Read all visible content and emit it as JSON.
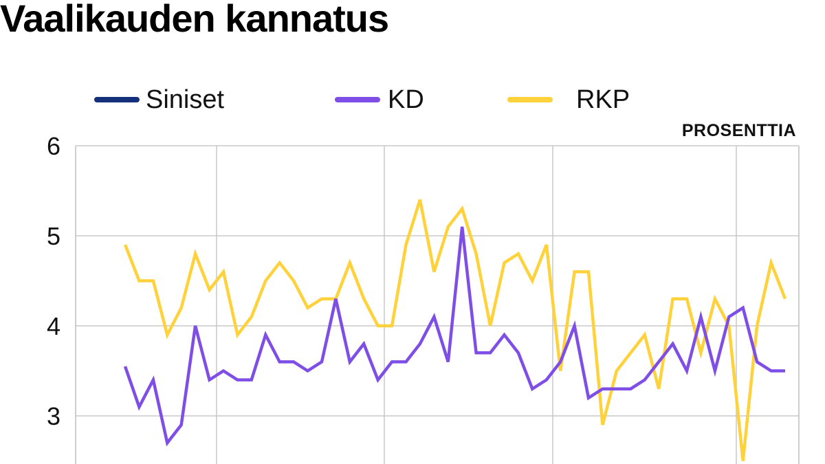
{
  "title": "Vaalikauden kannatus",
  "unit_label": "PROSENTTIA",
  "legend": [
    {
      "label": "Siniset",
      "color": "#14307a"
    },
    {
      "label": "KD",
      "color": "#7e4ee6"
    },
    {
      "label": "RKP",
      "color": "#ffd23c"
    }
  ],
  "chart_data": {
    "type": "line",
    "title": "Vaalikauden kannatus",
    "ylabel": "PROSENTTIA",
    "xlabel": "",
    "ylim": [
      2.5,
      6.0
    ],
    "y_ticks": [
      "6",
      "5",
      "4",
      "3"
    ],
    "grid": true,
    "legend_position": "top",
    "series": [
      {
        "name": "KD",
        "color": "#7e4ee6",
        "values": [
          3.55,
          3.1,
          3.4,
          2.7,
          2.9,
          4.0,
          3.4,
          3.5,
          3.4,
          3.4,
          3.9,
          3.6,
          3.6,
          3.5,
          3.6,
          4.3,
          3.6,
          3.8,
          3.4,
          3.6,
          3.6,
          3.8,
          4.1,
          3.6,
          5.1,
          3.7,
          3.7,
          3.9,
          3.7,
          3.3,
          3.4,
          3.6,
          4.0,
          3.2,
          3.3,
          3.3,
          3.3,
          3.4,
          3.6,
          3.8,
          3.5,
          4.1,
          3.5,
          4.1,
          4.2,
          3.6,
          3.5,
          3.5
        ]
      },
      {
        "name": "RKP",
        "color": "#ffd23c",
        "values": [
          4.9,
          4.5,
          4.5,
          3.9,
          4.2,
          4.8,
          4.4,
          4.6,
          3.9,
          4.1,
          4.5,
          4.7,
          4.5,
          4.2,
          4.3,
          4.3,
          4.7,
          4.3,
          4.0,
          4.0,
          4.9,
          5.4,
          4.6,
          5.1,
          5.3,
          4.8,
          4.0,
          4.7,
          4.8,
          4.5,
          4.9,
          3.5,
          4.6,
          4.6,
          2.9,
          3.5,
          3.7,
          3.9,
          3.3,
          4.3,
          4.3,
          3.7,
          4.3,
          4.0,
          2.5,
          4.0,
          4.7,
          4.3
        ]
      }
    ]
  }
}
